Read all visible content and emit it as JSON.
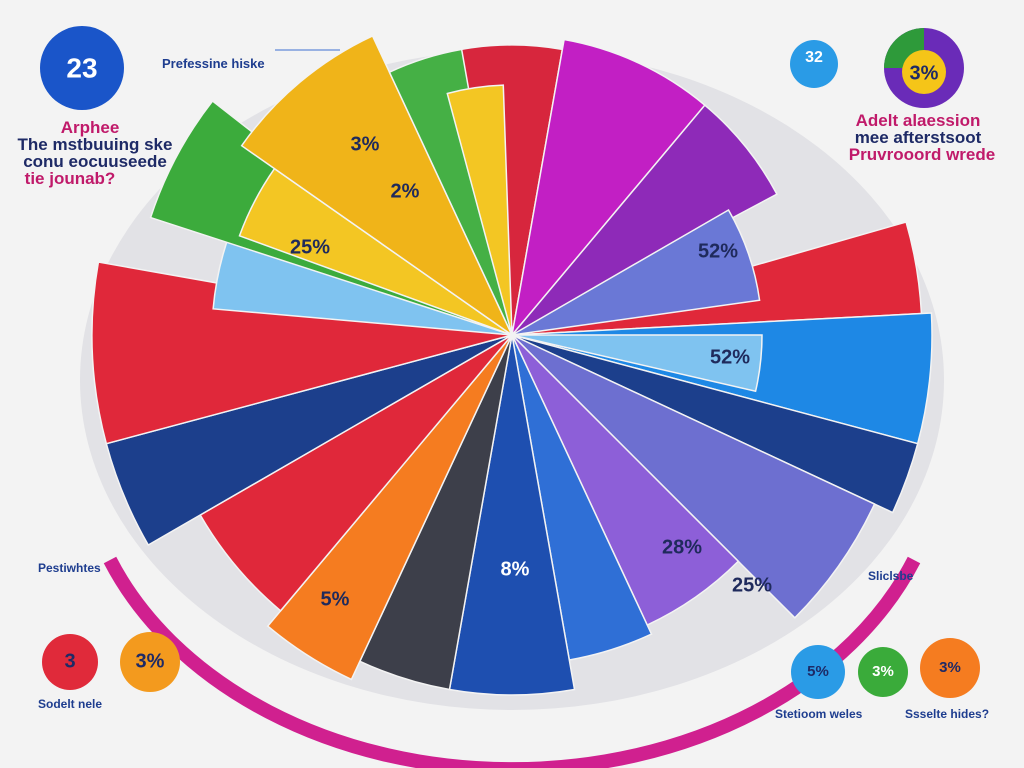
{
  "header": {
    "badge": "23",
    "title": "Prefessine hiske"
  },
  "left_heading": [
    "Arphee",
    "The mstbuuing ske",
    "conu eocuuseede",
    "tie jounab?"
  ],
  "right_badges": [
    "32",
    "3%"
  ],
  "right_heading": [
    "Adelt alaession",
    "mee afterstsoot",
    "Pruvrooord wrede"
  ],
  "pie_labels": [
    "3%",
    "2%",
    "25%",
    "52%",
    "52%",
    "28%",
    "25%",
    "8%",
    "5%"
  ],
  "bottom_left": {
    "title": "Pestiwhtes",
    "badges": [
      "3",
      "3%"
    ],
    "footer_title": "Sodelt nele"
  },
  "bottom_right": {
    "title": "Sliclsbe",
    "badges": [
      "5%",
      "3%",
      "3%"
    ],
    "captions": [
      "Stetioom weles",
      "Ssselte hides?"
    ]
  }
}
